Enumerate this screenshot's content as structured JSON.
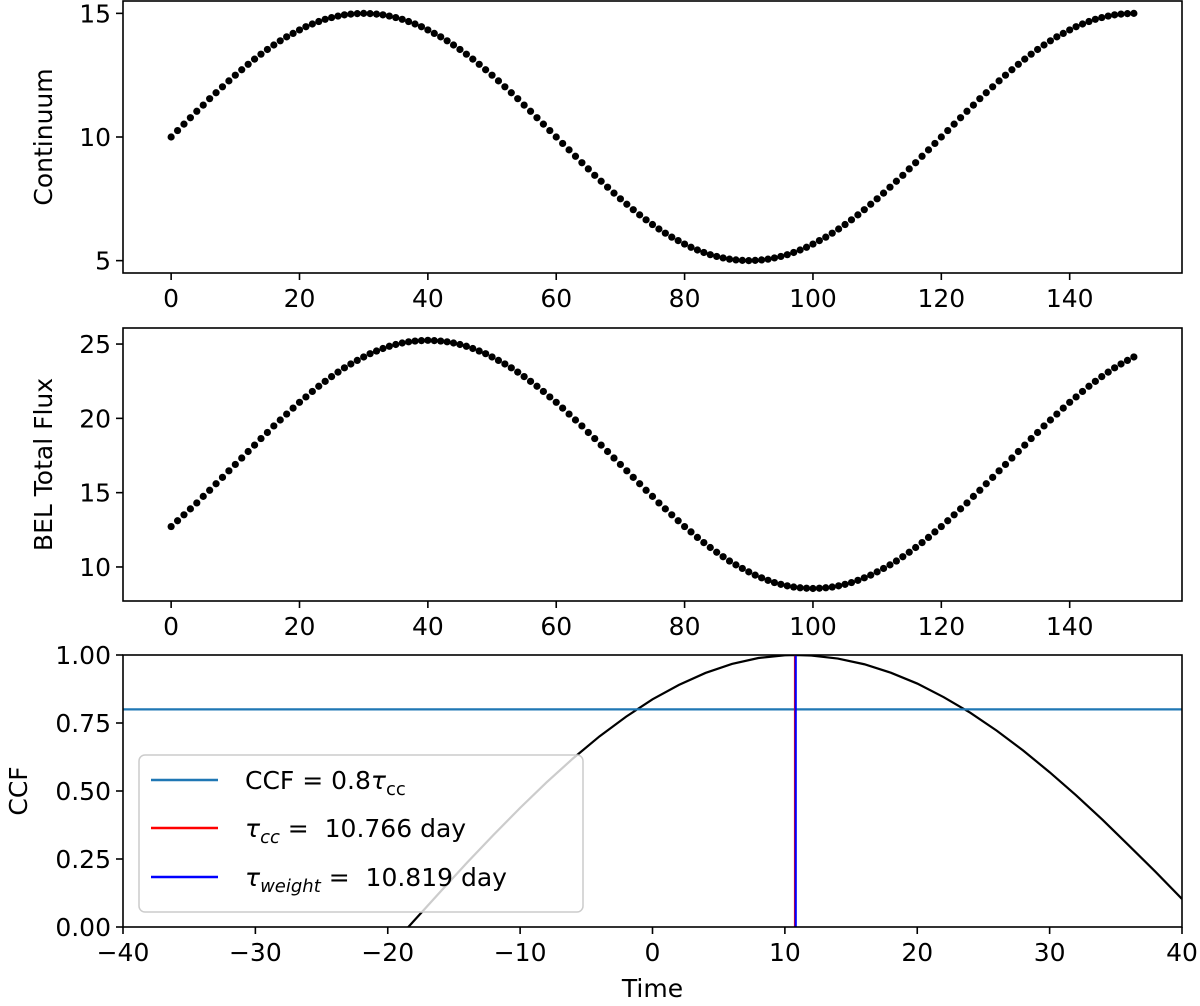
{
  "chart_data": [
    {
      "type": "scatter",
      "ylabel": "Continuum",
      "xlabel": "",
      "xlim": [
        -7.5,
        157.5
      ],
      "ylim": [
        4.5,
        15.5
      ],
      "xticks": [
        0,
        20,
        40,
        60,
        80,
        100,
        120,
        140
      ],
      "xtick_labels": [
        "0",
        "20",
        "40",
        "60",
        "80",
        "100",
        "120",
        "140"
      ],
      "yticks": [
        5,
        10,
        15
      ],
      "ytick_labels": [
        "5",
        "10",
        "15"
      ],
      "grid": false,
      "marker_color": "#000000",
      "x": [
        0,
        1,
        2,
        3,
        4,
        5,
        6,
        7,
        8,
        9,
        10,
        11,
        12,
        13,
        14,
        15,
        16,
        17,
        18,
        19,
        20,
        21,
        22,
        23,
        24,
        25,
        26,
        27,
        28,
        29,
        30,
        31,
        32,
        33,
        34,
        35,
        36,
        37,
        38,
        39,
        40,
        41,
        42,
        43,
        44,
        45,
        46,
        47,
        48,
        49,
        50,
        51,
        52,
        53,
        54,
        55,
        56,
        57,
        58,
        59,
        60,
        61,
        62,
        63,
        64,
        65,
        66,
        67,
        68,
        69,
        70,
        71,
        72,
        73,
        74,
        75,
        76,
        77,
        78,
        79,
        80,
        81,
        82,
        83,
        84,
        85,
        86,
        87,
        88,
        89,
        90,
        91,
        92,
        93,
        94,
        95,
        96,
        97,
        98,
        99,
        100,
        101,
        102,
        103,
        104,
        105,
        106,
        107,
        108,
        109,
        110,
        111,
        112,
        113,
        114,
        115,
        116,
        117,
        118,
        119,
        120,
        121,
        122,
        123,
        124,
        125,
        126,
        127,
        128,
        129,
        130,
        131,
        132,
        133,
        134,
        135,
        136,
        137,
        138,
        139,
        140,
        141,
        142,
        143,
        144,
        145,
        146,
        147,
        148,
        149,
        150
      ],
      "y": [
        10.0,
        10.26,
        10.52,
        10.78,
        11.04,
        11.29,
        11.55,
        11.79,
        12.03,
        12.27,
        12.5,
        12.72,
        12.94,
        13.15,
        13.35,
        13.54,
        13.72,
        13.89,
        14.05,
        14.19,
        14.33,
        14.46,
        14.57,
        14.67,
        14.76,
        14.83,
        14.89,
        14.94,
        14.97,
        14.99,
        15.0,
        14.99,
        14.97,
        14.94,
        14.89,
        14.83,
        14.76,
        14.67,
        14.57,
        14.46,
        14.33,
        14.19,
        14.05,
        13.89,
        13.72,
        13.54,
        13.35,
        13.15,
        12.94,
        12.72,
        12.5,
        12.27,
        12.03,
        11.79,
        11.55,
        11.29,
        11.04,
        10.78,
        10.52,
        10.26,
        10.0,
        9.74,
        9.48,
        9.22,
        8.96,
        8.71,
        8.45,
        8.21,
        7.97,
        7.73,
        7.5,
        7.28,
        7.06,
        6.85,
        6.65,
        6.46,
        6.28,
        6.11,
        5.95,
        5.81,
        5.67,
        5.54,
        5.43,
        5.33,
        5.24,
        5.17,
        5.11,
        5.06,
        5.03,
        5.01,
        5.0,
        5.01,
        5.03,
        5.06,
        5.11,
        5.17,
        5.24,
        5.33,
        5.43,
        5.54,
        5.67,
        5.81,
        5.95,
        6.11,
        6.28,
        6.46,
        6.65,
        6.85,
        7.06,
        7.28,
        7.5,
        7.73,
        7.97,
        8.21,
        8.45,
        8.71,
        8.96,
        9.22,
        9.48,
        9.74,
        10.0,
        10.26,
        10.52,
        10.78,
        11.04,
        11.29,
        11.55,
        11.79,
        12.03,
        12.27,
        12.5,
        12.72,
        12.94,
        13.15,
        13.35,
        13.54,
        13.72,
        13.89,
        14.05,
        14.19,
        14.33,
        14.46,
        14.57,
        14.67,
        14.76,
        14.83,
        14.89,
        14.94,
        14.97,
        14.99,
        15.0
      ]
    },
    {
      "type": "scatter",
      "ylabel": "BEL Total Flux",
      "xlabel": "",
      "xlim": [
        -7.5,
        157.5
      ],
      "ylim": [
        7.71,
        26.08
      ],
      "xticks": [
        0,
        20,
        40,
        60,
        80,
        100,
        120,
        140
      ],
      "xtick_labels": [
        "0",
        "20",
        "40",
        "60",
        "80",
        "100",
        "120",
        "140"
      ],
      "yticks": [
        10,
        15,
        20,
        25
      ],
      "ytick_labels": [
        "10",
        "15",
        "20",
        "25"
      ],
      "grid": false,
      "marker_color": "#000000",
      "x": [
        0,
        1,
        2,
        3,
        4,
        5,
        6,
        7,
        8,
        9,
        10,
        11,
        12,
        13,
        14,
        15,
        16,
        17,
        18,
        19,
        20,
        21,
        22,
        23,
        24,
        25,
        26,
        27,
        28,
        29,
        30,
        31,
        32,
        33,
        34,
        35,
        36,
        37,
        38,
        39,
        40,
        41,
        42,
        43,
        44,
        45,
        46,
        47,
        48,
        49,
        50,
        51,
        52,
        53,
        54,
        55,
        56,
        57,
        58,
        59,
        60,
        61,
        62,
        63,
        64,
        65,
        66,
        67,
        68,
        69,
        70,
        71,
        72,
        73,
        74,
        75,
        76,
        77,
        78,
        79,
        80,
        81,
        82,
        83,
        84,
        85,
        86,
        87,
        88,
        89,
        90,
        91,
        92,
        93,
        94,
        95,
        96,
        97,
        98,
        99,
        100,
        101,
        102,
        103,
        104,
        105,
        106,
        107,
        108,
        109,
        110,
        111,
        112,
        113,
        114,
        115,
        116,
        117,
        118,
        119,
        120,
        121,
        122,
        123,
        124,
        125,
        126,
        127,
        128,
        129,
        130,
        131,
        132,
        133,
        134,
        135,
        136,
        137,
        138,
        139,
        140,
        141,
        142,
        143,
        144,
        145,
        146,
        147,
        148,
        149,
        150
      ],
      "y": [
        12.72,
        13.11,
        13.51,
        13.91,
        14.31,
        14.75,
        15.16,
        15.6,
        16.03,
        16.47,
        16.9,
        17.33,
        17.77,
        18.2,
        18.64,
        19.05,
        19.49,
        19.89,
        20.29,
        20.69,
        21.08,
        21.44,
        21.81,
        22.16,
        22.49,
        22.81,
        23.11,
        23.4,
        23.66,
        23.9,
        24.13,
        24.35,
        24.53,
        24.7,
        24.85,
        24.97,
        25.07,
        25.15,
        25.2,
        25.23,
        25.25,
        25.23,
        25.2,
        25.15,
        25.07,
        24.97,
        24.85,
        24.7,
        24.53,
        24.35,
        24.13,
        23.9,
        23.66,
        23.4,
        23.11,
        22.81,
        22.49,
        22.16,
        21.81,
        21.44,
        21.08,
        20.69,
        20.29,
        19.89,
        19.49,
        19.05,
        18.64,
        18.2,
        17.77,
        17.33,
        16.9,
        16.47,
        16.03,
        15.6,
        15.16,
        14.75,
        14.31,
        13.91,
        13.51,
        13.11,
        12.72,
        12.36,
        11.99,
        11.64,
        11.31,
        10.99,
        10.69,
        10.4,
        10.14,
        9.9,
        9.67,
        9.45,
        9.27,
        9.1,
        8.95,
        8.83,
        8.73,
        8.65,
        8.6,
        8.57,
        8.55,
        8.57,
        8.6,
        8.65,
        8.73,
        8.83,
        8.95,
        9.1,
        9.27,
        9.45,
        9.67,
        9.9,
        10.14,
        10.4,
        10.69,
        10.99,
        11.31,
        11.64,
        11.99,
        12.36,
        12.72,
        13.11,
        13.51,
        13.91,
        14.31,
        14.75,
        15.16,
        15.6,
        16.03,
        16.47,
        16.9,
        17.33,
        17.77,
        18.2,
        18.64,
        19.05,
        19.49,
        19.89,
        20.29,
        20.69,
        21.08,
        21.44,
        21.81,
        22.16,
        22.49,
        22.81,
        23.11,
        23.4,
        23.66,
        23.9,
        24.13
      ]
    },
    {
      "type": "line",
      "ylabel": "CCF",
      "xlabel": "Time",
      "xlim": [
        -40,
        40
      ],
      "ylim": [
        0,
        1
      ],
      "xticks": [
        -40,
        -30,
        -20,
        -10,
        0,
        10,
        20,
        30,
        40
      ],
      "xtick_labels": [
        "−40",
        "−30",
        "−20",
        "−10",
        "0",
        "10",
        "20",
        "30",
        "40"
      ],
      "yticks": [
        0,
        0.25,
        0.5,
        0.75,
        1.0
      ],
      "ytick_labels": [
        "0.00",
        "0.25",
        "0.50",
        "0.75",
        "1.00"
      ],
      "grid": false,
      "line_color": "#000000",
      "x": [
        -20,
        -18,
        -16,
        -14,
        -12,
        -10,
        -8,
        -6,
        -4,
        -2,
        0,
        2,
        4,
        6,
        8,
        10,
        10.8,
        12,
        14,
        16,
        18,
        20,
        22,
        24,
        26,
        28,
        30,
        32,
        34,
        36,
        38,
        40
      ],
      "y": [
        -0.084,
        0.024,
        0.131,
        0.237,
        0.339,
        0.438,
        0.532,
        0.62,
        0.701,
        0.773,
        0.837,
        0.89,
        0.934,
        0.967,
        0.989,
        0.999,
        1.0,
        0.998,
        0.987,
        0.966,
        0.935,
        0.895,
        0.845,
        0.788,
        0.722,
        0.649,
        0.569,
        0.484,
        0.394,
        0.299,
        0.203,
        0.103
      ],
      "hline": {
        "y": 0.8,
        "color": "#1f77b4"
      },
      "vlines": [
        {
          "x": 10.766,
          "color": "#ff0000"
        },
        {
          "x": 10.819,
          "color": "#0000ff"
        }
      ],
      "legend": {
        "placement": "lower-left",
        "entries": [
          {
            "color": "#1f77b4",
            "parts": [
              {
                "t": "CCF = 0.8",
                "s": "normal"
              },
              {
                "t": "τ",
                "s": "italic"
              },
              {
                "t": "cc",
                "s": "sub"
              }
            ]
          },
          {
            "color": "#ff0000",
            "parts": [
              {
                "t": "τ",
                "s": "italic"
              },
              {
                "t": "cc",
                "s": "subitalic"
              },
              {
                "t": " =  10.766 day",
                "s": "normal"
              }
            ]
          },
          {
            "color": "#0000ff",
            "parts": [
              {
                "t": "τ",
                "s": "italic"
              },
              {
                "t": "weight",
                "s": "subitalic"
              },
              {
                "t": " =  10.819 day",
                "s": "normal"
              }
            ]
          }
        ]
      }
    }
  ]
}
